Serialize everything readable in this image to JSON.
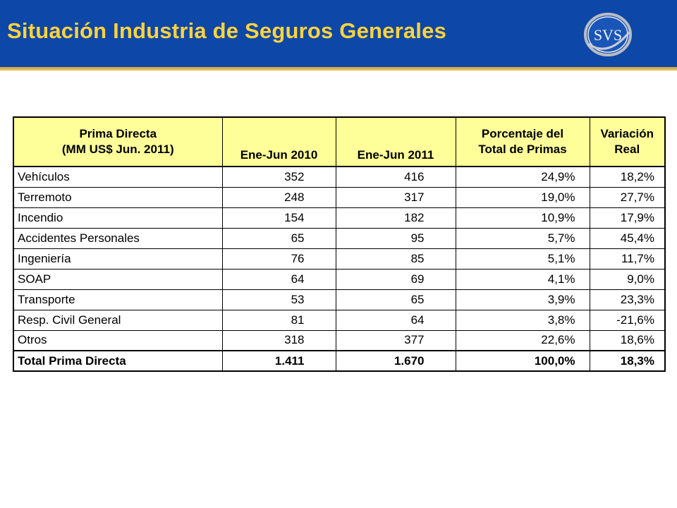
{
  "header": {
    "title": "Situación Industria de Seguros Generales",
    "logo_text": "SVS",
    "colors": {
      "bar": "#0d47a8",
      "title": "#ffd33c",
      "accent": "#c9a43a"
    }
  },
  "table": {
    "header": {
      "col0_line1": "Prima Directa",
      "col0_line2": "(MM US$ Jun. 2011)",
      "col1": "Ene-Jun 2010",
      "col2": "Ene-Jun 2011",
      "col3_line1": "Porcentaje del",
      "col3_line2": "Total de Primas",
      "col4_line1": "Variación",
      "col4_line2": "Real"
    },
    "rows": [
      {
        "label": "Vehículos",
        "v2010": "352",
        "v2011": "416",
        "pct": "24,9%",
        "var": "18,2%"
      },
      {
        "label": "Terremoto",
        "v2010": "248",
        "v2011": "317",
        "pct": "19,0%",
        "var": "27,7%"
      },
      {
        "label": "Incendio",
        "v2010": "154",
        "v2011": "182",
        "pct": "10,9%",
        "var": "17,9%"
      },
      {
        "label": "Accidentes Personales",
        "v2010": "65",
        "v2011": "95",
        "pct": "5,7%",
        "var": "45,4%"
      },
      {
        "label": "Ingeniería",
        "v2010": "76",
        "v2011": "85",
        "pct": "5,1%",
        "var": "11,7%"
      },
      {
        "label": "SOAP",
        "v2010": "64",
        "v2011": "69",
        "pct": "4,1%",
        "var": "9,0%"
      },
      {
        "label": "Transporte",
        "v2010": "53",
        "v2011": "65",
        "pct": "3,9%",
        "var": "23,3%"
      },
      {
        "label": "Resp. Civil General",
        "v2010": "81",
        "v2011": "64",
        "pct": "3,8%",
        "var": "-21,6%"
      },
      {
        "label": "Otros",
        "v2010": "318",
        "v2011": "377",
        "pct": "22,6%",
        "var": "18,6%"
      }
    ],
    "total": {
      "label": "Total Prima Directa",
      "v2010": "1.411",
      "v2011": "1.670",
      "pct": "100,0%",
      "var": "18,3%"
    },
    "colors": {
      "header_bg": "#ffff99"
    }
  }
}
